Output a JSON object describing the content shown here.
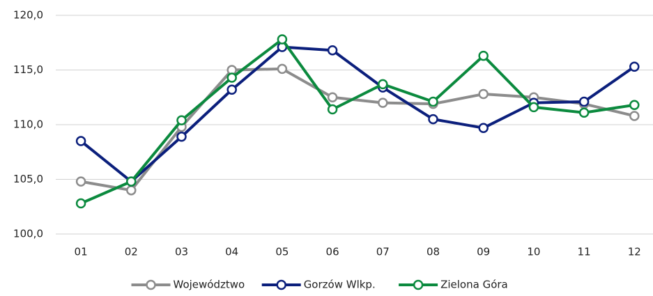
{
  "chart_data": {
    "type": "line",
    "categories": [
      "01",
      "02",
      "03",
      "04",
      "05",
      "06",
      "07",
      "08",
      "09",
      "10",
      "11",
      "12"
    ],
    "series": [
      {
        "name": "Województwo",
        "color": "#8c8c8c",
        "values": [
          104.8,
          104.0,
          109.8,
          115.0,
          115.1,
          112.5,
          112.0,
          111.9,
          112.8,
          112.5,
          111.9,
          110.8
        ]
      },
      {
        "name": "Gorzów Wlkp.",
        "color": "#0b1f7c",
        "values": [
          108.5,
          104.8,
          108.9,
          113.2,
          117.1,
          116.8,
          113.4,
          110.5,
          109.7,
          112.0,
          112.1,
          115.3
        ]
      },
      {
        "name": "Zielona Góra",
        "color": "#0b8a3e",
        "values": [
          102.8,
          104.8,
          110.4,
          114.3,
          117.8,
          111.4,
          113.7,
          112.1,
          116.3,
          111.6,
          111.1,
          111.8
        ]
      }
    ],
    "ylim": [
      100,
      120
    ],
    "yticks": [
      {
        "value": 100,
        "label": "100,0"
      },
      {
        "value": 105,
        "label": "105,0"
      },
      {
        "value": 110,
        "label": "110,0"
      },
      {
        "value": 115,
        "label": "115,0"
      },
      {
        "value": 120,
        "label": "120,0"
      }
    ],
    "grid": true,
    "legend": "bottom"
  }
}
